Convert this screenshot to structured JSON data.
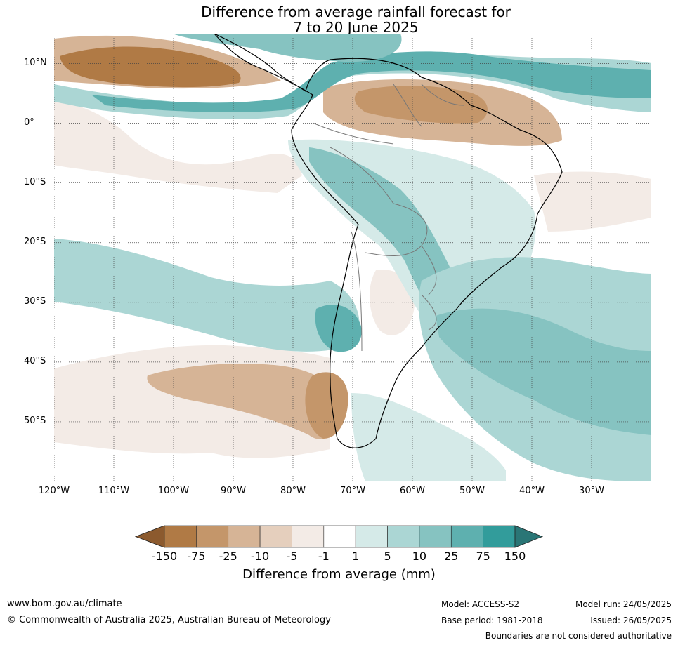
{
  "title": {
    "line1": "Difference from average rainfall forecast for",
    "line2": "7 to 20 June 2025"
  },
  "map": {
    "region": "South America",
    "lon_range": [
      -120,
      -20
    ],
    "lat_range": [
      -60,
      15
    ],
    "lat_labels": [
      "10°N",
      "0°",
      "10°S",
      "20°S",
      "30°S",
      "40°S",
      "50°S"
    ],
    "lon_labels": [
      "120°W",
      "110°W",
      "100°W",
      "90°W",
      "80°W",
      "70°W",
      "60°W",
      "50°W",
      "40°W",
      "30°W"
    ],
    "grid": true
  },
  "colorbar": {
    "ticks": [
      "-150",
      "-75",
      "-25",
      "-10",
      "-5",
      "-1",
      "1",
      "5",
      "10",
      "25",
      "75",
      "150"
    ],
    "colors": [
      "#8c5a2e",
      "#b07a45",
      "#c4966a",
      "#d6b496",
      "#e5cfbd",
      "#f3ebe6",
      "#ffffff",
      "#d5eae8",
      "#abd6d4",
      "#86c3c1",
      "#5eb0af",
      "#329c9b",
      "#2a7676"
    ],
    "label": "Difference from average (mm)"
  },
  "footer": {
    "website": "www.bom.gov.au/climate",
    "copyright": "© Commonwealth of Australia 2025, Australian Bureau of Meteorology",
    "model": "Model: ACCESS-S2",
    "base_period": "Base period: 1981-2018",
    "model_run": "Model run: 24/05/2025",
    "issued": "Issued: 26/05/2025",
    "disclaimer": "Boundaries are not considered authoritative"
  }
}
